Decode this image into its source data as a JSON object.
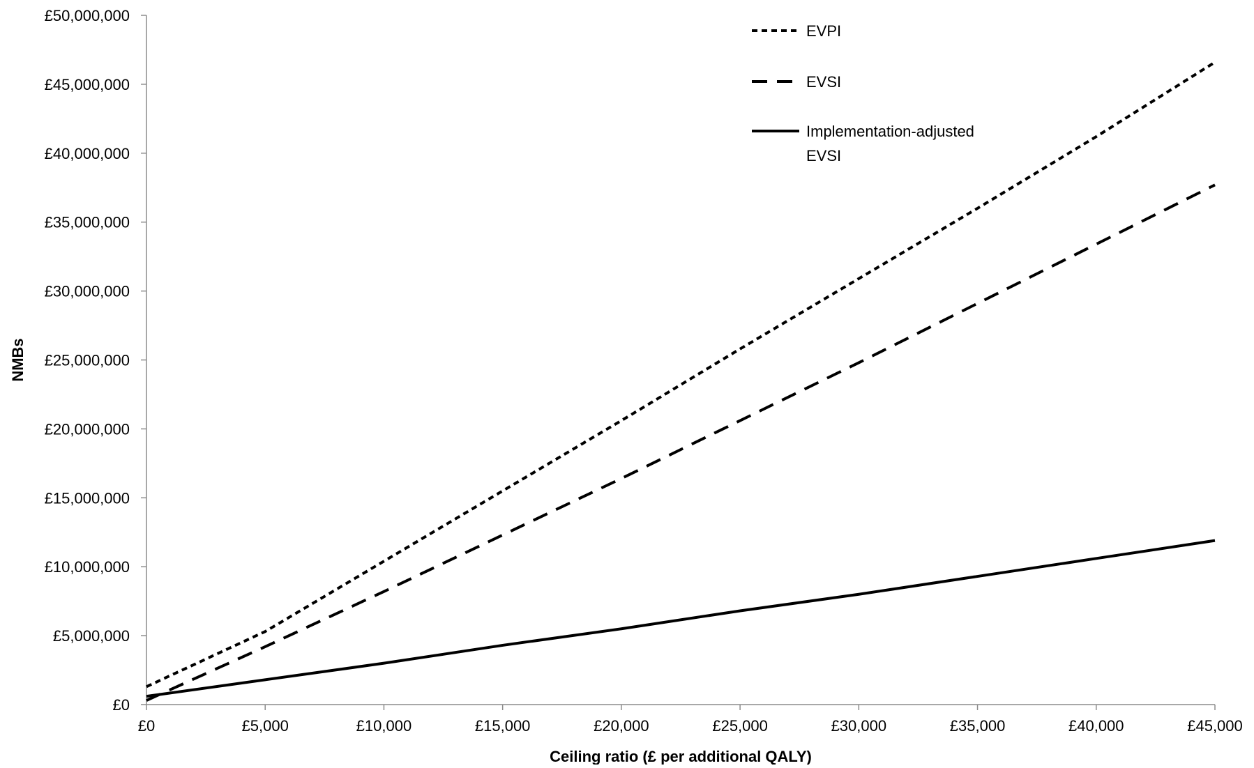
{
  "chart_data": {
    "type": "line",
    "title": "",
    "xlabel": "Ceiling ratio (£ per additional QALY)",
    "ylabel": "NMBs",
    "xlim": [
      0,
      45000
    ],
    "ylim": [
      0,
      50000000
    ],
    "grid": false,
    "legend_position": "top-right",
    "x_ticks": [
      0,
      5000,
      10000,
      15000,
      20000,
      25000,
      30000,
      35000,
      40000,
      45000
    ],
    "x_tick_labels": [
      "£0",
      "£5,000",
      "£10,000",
      "£15,000",
      "£20,000",
      "£25,000",
      "£30,000",
      "£35,000",
      "£40,000",
      "£45,000"
    ],
    "y_ticks": [
      0,
      5000000,
      10000000,
      15000000,
      20000000,
      25000000,
      30000000,
      35000000,
      40000000,
      45000000,
      50000000
    ],
    "y_tick_labels": [
      "£0",
      "£5,000,000",
      "£10,000,000",
      "£15,000,000",
      "£20,000,000",
      "£25,000,000",
      "£30,000,000",
      "£35,000,000",
      "£40,000,000",
      "£45,000,000",
      "£50,000,000"
    ],
    "x": [
      0,
      5000,
      10000,
      15000,
      20000,
      25000,
      30000,
      35000,
      40000,
      45000
    ],
    "series": [
      {
        "name": "EVPI",
        "legend_lines": [
          "EVPI"
        ],
        "style": "dotted",
        "color": "#000000",
        "values": [
          1300000,
          5300000,
          10400000,
          15500000,
          20600000,
          25800000,
          30900000,
          36000000,
          41200000,
          46600000
        ]
      },
      {
        "name": "EVSI",
        "legend_lines": [
          "EVSI"
        ],
        "style": "dashed",
        "color": "#000000",
        "values": [
          300000,
          4200000,
          8200000,
          12300000,
          16400000,
          20600000,
          24800000,
          29100000,
          33400000,
          37700000
        ]
      },
      {
        "name": "Implementation-adjusted EVSI",
        "legend_lines": [
          "Implementation-adjusted",
          "EVSI"
        ],
        "style": "solid",
        "color": "#000000",
        "values": [
          600000,
          1800000,
          3000000,
          4300000,
          5500000,
          6800000,
          8000000,
          9300000,
          10600000,
          11900000
        ]
      }
    ]
  }
}
